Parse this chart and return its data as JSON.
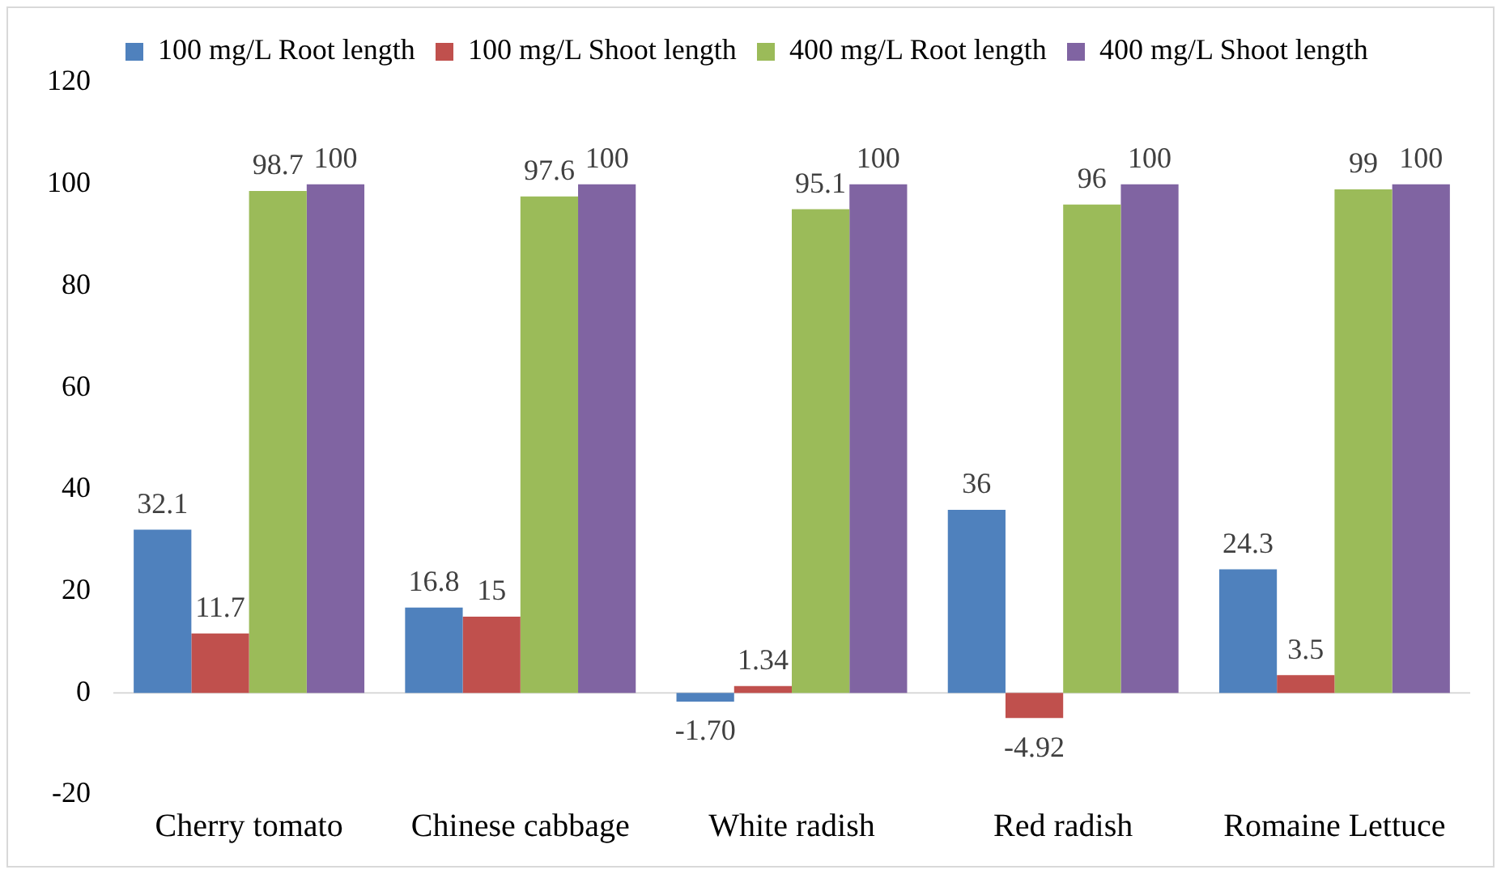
{
  "chart_data": {
    "type": "bar",
    "categories": [
      "Cherry tomato",
      "Chinese cabbage",
      "White radish",
      "Red radish",
      "Romaine Lettuce"
    ],
    "series": [
      {
        "name": "100 mg/L Root length",
        "color": "#4f81bd",
        "values": [
          32.1,
          16.8,
          -1.7,
          36,
          24.3
        ],
        "value_labels": [
          "32.1",
          "16.8",
          "-1.70",
          "36",
          "24.3"
        ]
      },
      {
        "name": "100 mg/L Shoot length",
        "color": "#c0504d",
        "values": [
          11.7,
          15,
          1.34,
          -4.92,
          3.5
        ],
        "value_labels": [
          "11.7",
          "15",
          "1.34",
          "-4.92",
          "3.5"
        ]
      },
      {
        "name": "400 mg/L Root length",
        "color": "#9bbb59",
        "values": [
          98.7,
          97.6,
          95.1,
          96,
          99
        ],
        "value_labels": [
          "98.7",
          "97.6",
          "95.1",
          "96",
          "99"
        ]
      },
      {
        "name": "400 mg/L Shoot length",
        "color": "#8064a2",
        "values": [
          100,
          100,
          100,
          100,
          100
        ],
        "value_labels": [
          "100",
          "100",
          "100",
          "100",
          "100"
        ]
      }
    ],
    "ylim": [
      -20,
      120
    ],
    "yticks": [
      -20,
      0,
      20,
      40,
      60,
      80,
      100,
      120
    ],
    "grid": false,
    "legend": "top",
    "ref_lines": [
      {
        "axis": "y",
        "value": 0,
        "color": "#d9d9d9"
      }
    ]
  }
}
